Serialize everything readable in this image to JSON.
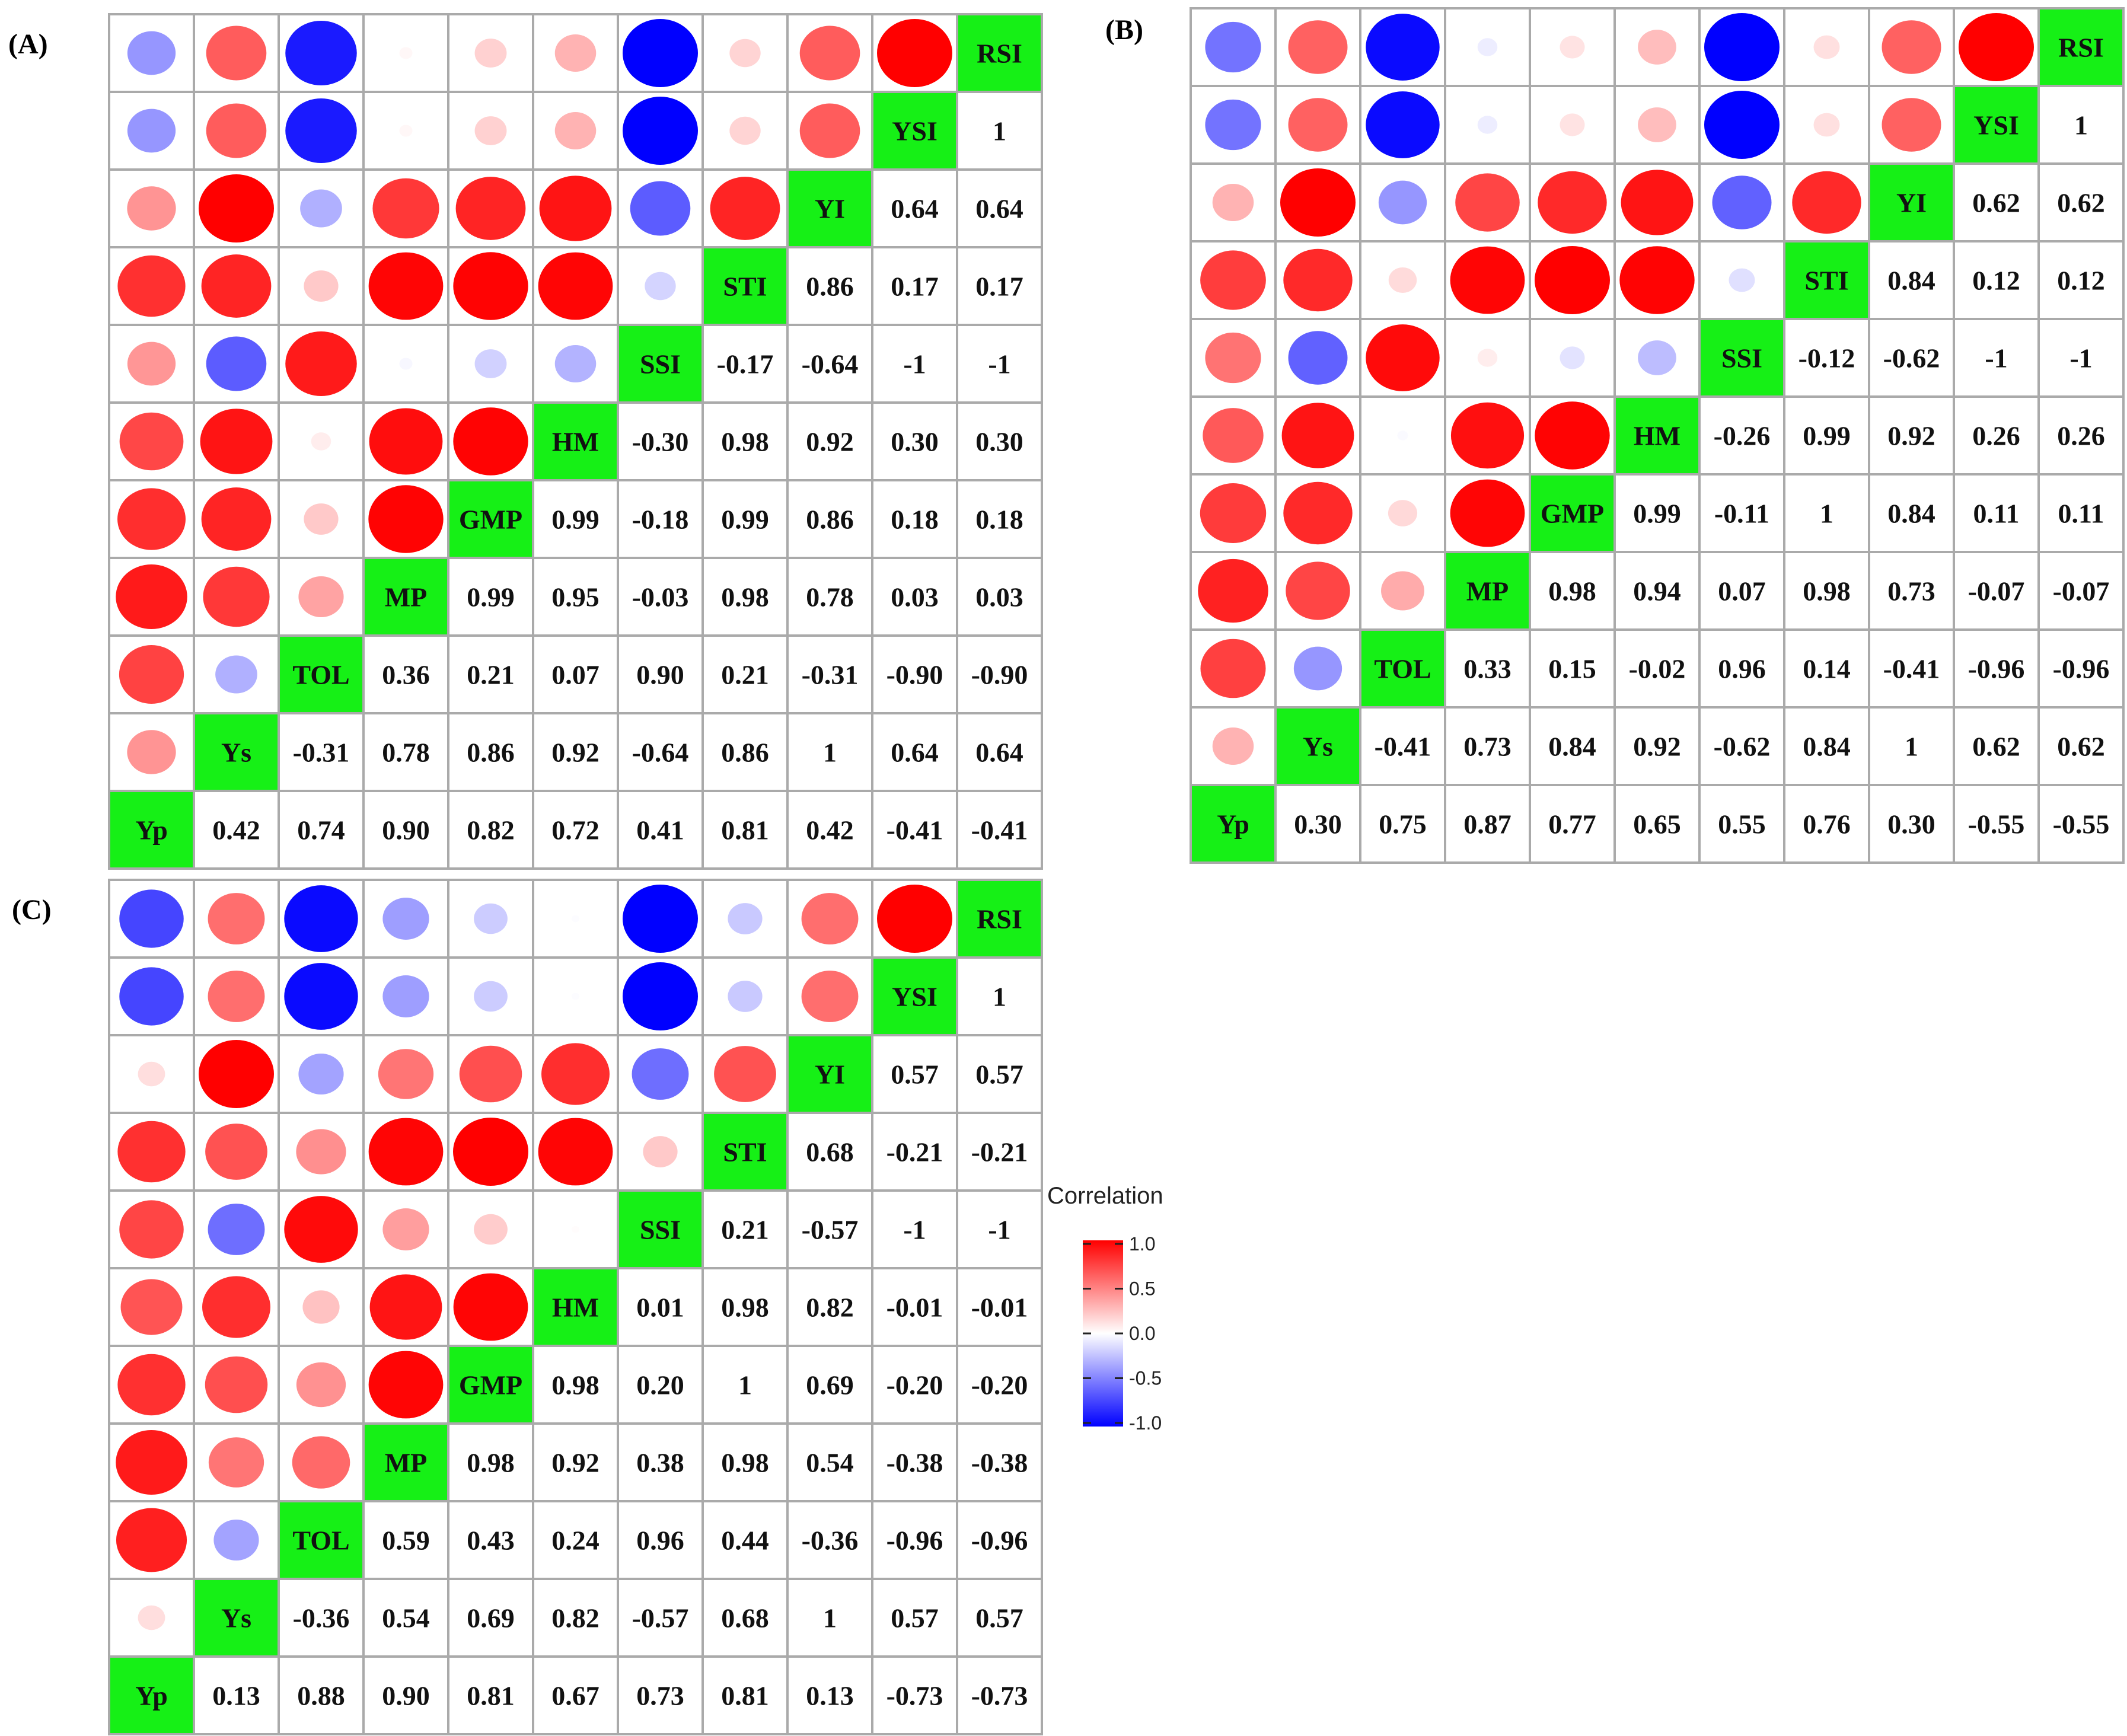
{
  "chart_data": [
    {
      "type": "heatmap",
      "panel": "(A)",
      "variables": [
        "Yp",
        "Ys",
        "TOL",
        "MP",
        "GMP",
        "HM",
        "SSI",
        "STI",
        "YI",
        "YSI",
        "RSI"
      ],
      "pairs": [
        [
          0.42
        ],
        [
          0.74,
          -0.31
        ],
        [
          0.9,
          0.78,
          0.36
        ],
        [
          0.82,
          0.86,
          0.21,
          0.99
        ],
        [
          0.72,
          0.92,
          0.07,
          0.95,
          0.99
        ],
        [
          0.41,
          -0.64,
          0.9,
          -0.03,
          -0.18,
          -0.3
        ],
        [
          0.81,
          0.86,
          0.21,
          0.98,
          0.99,
          0.98,
          -0.17
        ],
        [
          0.42,
          1,
          -0.31,
          0.78,
          0.86,
          0.92,
          -0.64,
          0.86
        ],
        [
          -0.41,
          0.64,
          -0.9,
          0.03,
          0.18,
          0.3,
          -1,
          0.17,
          0.64
        ],
        [
          -0.41,
          0.64,
          -0.9,
          0.03,
          0.18,
          0.3,
          -1,
          0.17,
          0.64,
          1
        ]
      ],
      "labels": [
        [
          "0.42"
        ],
        [
          "0.74",
          "-0.31"
        ],
        [
          "0.90",
          "0.78",
          "0.36"
        ],
        [
          "0.82",
          "0.86",
          "0.21",
          "0.99"
        ],
        [
          "0.72",
          "0.92",
          "0.07",
          "0.95",
          "0.99"
        ],
        [
          "0.41",
          "-0.64",
          "0.90",
          "-0.03",
          "-0.18",
          "-0.30"
        ],
        [
          "0.81",
          "0.86",
          "0.21",
          "0.98",
          "0.99",
          "0.98",
          "-0.17"
        ],
        [
          "0.42",
          "1",
          "-0.31",
          "0.78",
          "0.86",
          "0.92",
          "-0.64",
          "0.86"
        ],
        [
          "-0.41",
          "0.64",
          "-0.90",
          "0.03",
          "0.18",
          "0.30",
          "-1",
          "0.17",
          "0.64"
        ],
        [
          "-0.41",
          "0.64",
          "-0.90",
          "0.03",
          "0.18",
          "0.30",
          "-1",
          "0.17",
          "0.64",
          "1"
        ]
      ]
    },
    {
      "type": "heatmap",
      "panel": "(B)",
      "variables": [
        "Yp",
        "Ys",
        "TOL",
        "MP",
        "GMP",
        "HM",
        "SSI",
        "STI",
        "YI",
        "YSI",
        "RSI"
      ],
      "pairs": [
        [
          0.3
        ],
        [
          0.75,
          -0.41
        ],
        [
          0.87,
          0.73,
          0.33
        ],
        [
          0.77,
          0.84,
          0.15,
          0.98
        ],
        [
          0.65,
          0.92,
          -0.02,
          0.94,
          0.99
        ],
        [
          0.55,
          -0.62,
          0.96,
          0.07,
          -0.11,
          -0.26
        ],
        [
          0.76,
          0.84,
          0.14,
          0.98,
          1,
          0.99,
          -0.12
        ],
        [
          0.3,
          1,
          -0.41,
          0.73,
          0.84,
          0.92,
          -0.62,
          0.84
        ],
        [
          -0.55,
          0.62,
          -0.96,
          -0.07,
          0.11,
          0.26,
          -1,
          0.12,
          0.62
        ],
        [
          -0.55,
          0.62,
          -0.96,
          -0.07,
          0.11,
          0.26,
          -1,
          0.12,
          0.62,
          1
        ]
      ],
      "labels": [
        [
          "0.30"
        ],
        [
          "0.75",
          "-0.41"
        ],
        [
          "0.87",
          "0.73",
          "0.33"
        ],
        [
          "0.77",
          "0.84",
          "0.15",
          "0.98"
        ],
        [
          "0.65",
          "0.92",
          "-0.02",
          "0.94",
          "0.99"
        ],
        [
          "0.55",
          "-0.62",
          "0.96",
          "0.07",
          "-0.11",
          "-0.26"
        ],
        [
          "0.76",
          "0.84",
          "0.14",
          "0.98",
          "1",
          "0.99",
          "-0.12"
        ],
        [
          "0.30",
          "1",
          "-0.41",
          "0.73",
          "0.84",
          "0.92",
          "-0.62",
          "0.84"
        ],
        [
          "-0.55",
          "0.62",
          "-0.96",
          "-0.07",
          "0.11",
          "0.26",
          "-1",
          "0.12",
          "0.62"
        ],
        [
          "-0.55",
          "0.62",
          "-0.96",
          "-0.07",
          "0.11",
          "0.26",
          "-1",
          "0.12",
          "0.62",
          "1"
        ]
      ]
    },
    {
      "type": "heatmap",
      "panel": "(C)",
      "variables": [
        "Yp",
        "Ys",
        "TOL",
        "MP",
        "GMP",
        "HM",
        "SSI",
        "STI",
        "YI",
        "YSI",
        "RSI"
      ],
      "pairs": [
        [
          0.13
        ],
        [
          0.88,
          -0.36
        ],
        [
          0.9,
          0.54,
          0.59
        ],
        [
          0.81,
          0.69,
          0.43,
          0.98
        ],
        [
          0.67,
          0.82,
          0.24,
          0.92,
          0.98
        ],
        [
          0.73,
          -0.57,
          0.96,
          0.38,
          0.2,
          0.01
        ],
        [
          0.81,
          0.68,
          0.44,
          0.98,
          1,
          0.98,
          0.21
        ],
        [
          0.13,
          1,
          -0.36,
          0.54,
          0.69,
          0.82,
          -0.57,
          0.68
        ],
        [
          -0.73,
          0.57,
          -0.96,
          -0.38,
          -0.2,
          -0.01,
          -1,
          -0.21,
          0.57
        ],
        [
          -0.73,
          0.57,
          -0.96,
          -0.38,
          -0.2,
          -0.01,
          -1,
          -0.21,
          0.57,
          1
        ]
      ],
      "labels": [
        [
          "0.13"
        ],
        [
          "0.88",
          "-0.36"
        ],
        [
          "0.90",
          "0.54",
          "0.59"
        ],
        [
          "0.81",
          "0.69",
          "0.43",
          "0.98"
        ],
        [
          "0.67",
          "0.82",
          "0.24",
          "0.92",
          "0.98"
        ],
        [
          "0.73",
          "-0.57",
          "0.96",
          "0.38",
          "0.20",
          "0.01"
        ],
        [
          "0.81",
          "0.68",
          "0.44",
          "0.98",
          "1",
          "0.98",
          "0.21"
        ],
        [
          "0.13",
          "1",
          "-0.36",
          "0.54",
          "0.69",
          "0.82",
          "-0.57",
          "0.68"
        ],
        [
          "-0.73",
          "0.57",
          "-0.96",
          "-0.38",
          "-0.20",
          "-0.01",
          "-1",
          "-0.21",
          "0.57"
        ],
        [
          "-0.73",
          "0.57",
          "-0.96",
          "-0.38",
          "-0.20",
          "-0.01",
          "-1",
          "-0.21",
          "0.57",
          "1"
        ]
      ]
    }
  ],
  "legend": {
    "title": "Correlation",
    "ticks": [
      "1.0",
      "0.5",
      "0.0",
      "-0.5",
      "-1.0"
    ],
    "colors": {
      "positive": "#ff0000",
      "neutral": "#ffffff",
      "negative": "#0000ff"
    }
  }
}
